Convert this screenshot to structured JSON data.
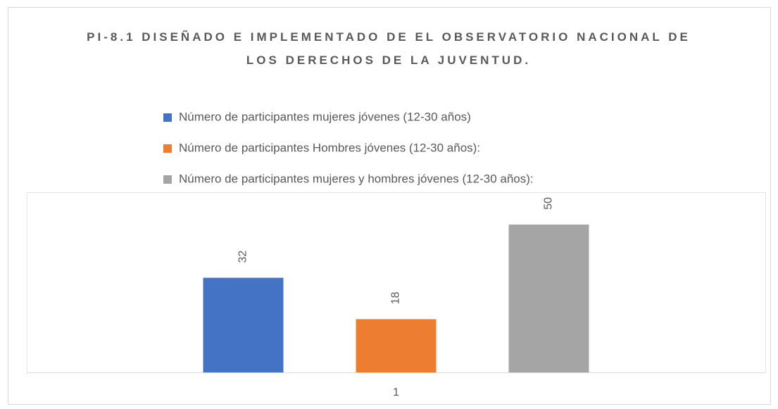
{
  "chart_data": {
    "type": "bar",
    "title": "PI-8.1 DISEÑADO E IMPLEMENTADO DE EL OBSERVATORIO NACIONAL DE LOS DERECHOS DE LA JUVENTUD.",
    "categories": [
      "1"
    ],
    "series": [
      {
        "name": "Número de participantes mujeres jóvenes (12-30 años)",
        "color": "#4472c4",
        "values": [
          32
        ]
      },
      {
        "name": "Número de participantes Hombres jóvenes (12-30 años):",
        "color": "#ed7d31",
        "values": [
          18
        ]
      },
      {
        "name": "Número de participantes mujeres y hombres jóvenes (12-30 años):",
        "color": "#a5a5a5",
        "values": [
          50
        ]
      }
    ],
    "ylim": [
      0,
      60
    ],
    "legend": "top"
  }
}
